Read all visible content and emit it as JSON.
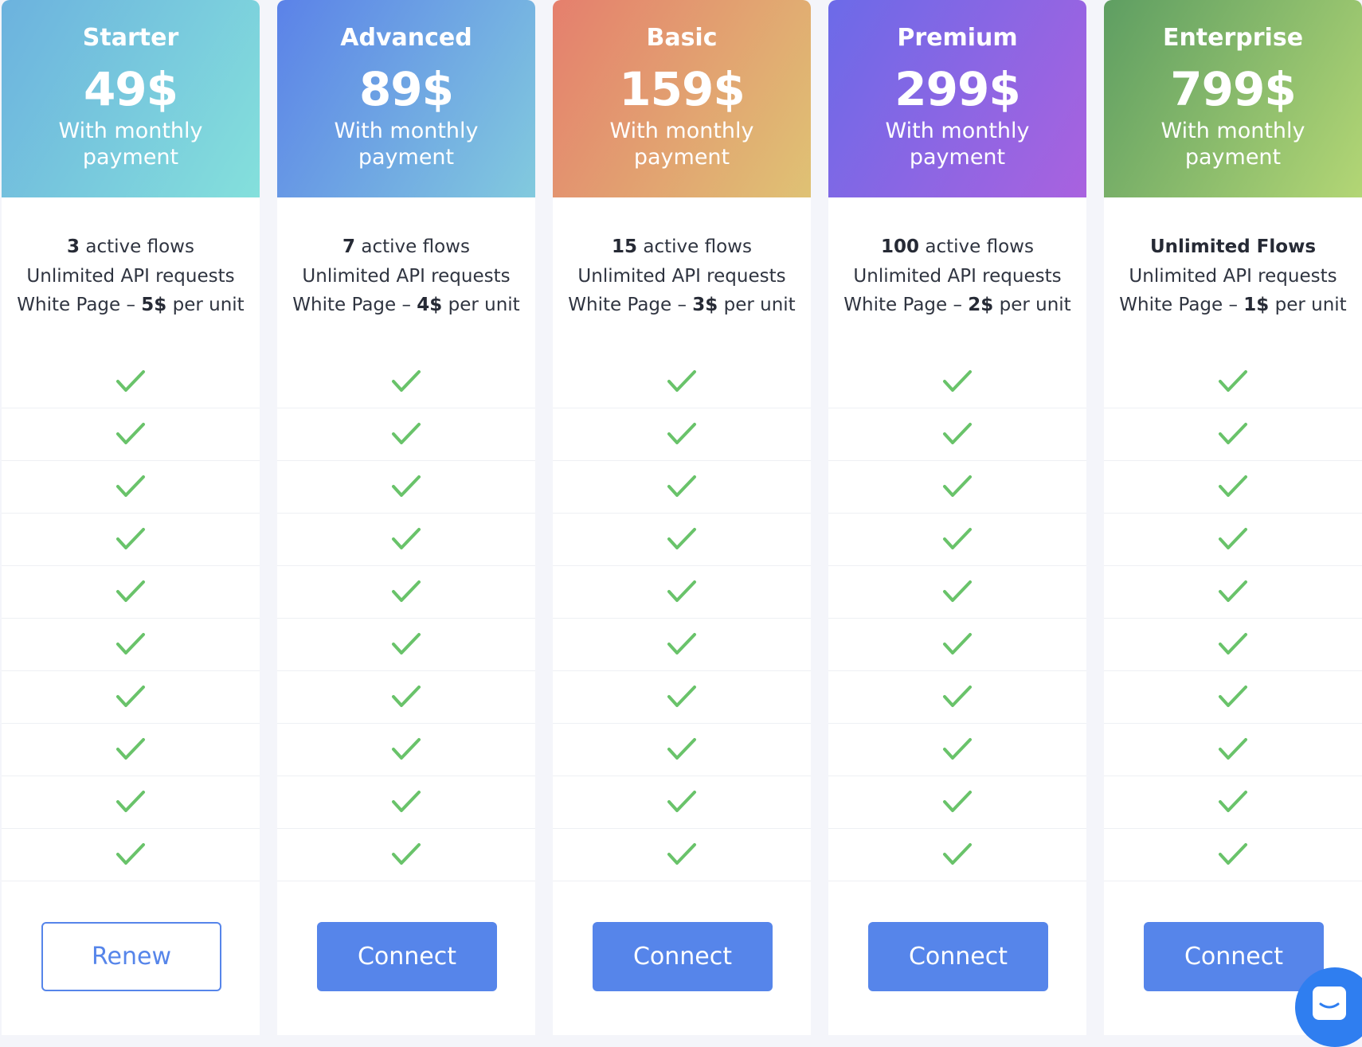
{
  "plans": [
    {
      "name": "Starter",
      "price": "49$",
      "period": "With monthly payment",
      "colors": [
        "#6cb2de",
        "#84e0dc"
      ],
      "features": [
        [
          {
            "text": "3",
            "bold": true
          },
          {
            "text": " active flows"
          }
        ],
        [
          {
            "text": "Unlimited API requests"
          }
        ],
        [
          {
            "text": "White Page – "
          },
          {
            "text": "5$",
            "bold": true
          },
          {
            "text": " per unit"
          }
        ]
      ],
      "button": {
        "label": "Renew",
        "style": "outline"
      }
    },
    {
      "name": "Advanced",
      "price": "89$",
      "period": "With monthly payment",
      "colors": [
        "#5b82e8",
        "#82cade"
      ],
      "features": [
        [
          {
            "text": "7",
            "bold": true
          },
          {
            "text": " active flows"
          }
        ],
        [
          {
            "text": "Unlimited API requests"
          }
        ],
        [
          {
            "text": "White Page – "
          },
          {
            "text": "4$",
            "bold": true
          },
          {
            "text": " per unit"
          }
        ]
      ],
      "button": {
        "label": "Connect",
        "style": "primary"
      }
    },
    {
      "name": "Basic",
      "price": "159$",
      "period": "With monthly payment",
      "colors": [
        "#e57f6d",
        "#dfc274"
      ],
      "features": [
        [
          {
            "text": "15",
            "bold": true
          },
          {
            "text": " active flows"
          }
        ],
        [
          {
            "text": "Unlimited API requests"
          }
        ],
        [
          {
            "text": "White Page – "
          },
          {
            "text": "3$",
            "bold": true
          },
          {
            "text": " per unit"
          }
        ]
      ],
      "button": {
        "label": "Connect",
        "style": "primary"
      }
    },
    {
      "name": "Premium",
      "price": "299$",
      "period": "With monthly payment",
      "colors": [
        "#6c6ae8",
        "#a962df"
      ],
      "features": [
        [
          {
            "text": "100",
            "bold": true
          },
          {
            "text": " active flows"
          }
        ],
        [
          {
            "text": "Unlimited API requests"
          }
        ],
        [
          {
            "text": "White Page – "
          },
          {
            "text": "2$",
            "bold": true
          },
          {
            "text": " per unit"
          }
        ]
      ],
      "button": {
        "label": "Connect",
        "style": "primary"
      }
    },
    {
      "name": "Enterprise",
      "price": "799$",
      "period": "With monthly payment",
      "colors": [
        "#5e9e62",
        "#b3d675"
      ],
      "features": [
        [
          {
            "text": "Unlimited Flows",
            "bold": true
          }
        ],
        [
          {
            "text": "Unlimited API requests"
          }
        ],
        [
          {
            "text": "White Page – "
          },
          {
            "text": "1$",
            "bold": true
          },
          {
            "text": " per unit"
          }
        ]
      ],
      "button": {
        "label": "Connect",
        "style": "primary"
      }
    }
  ]
}
